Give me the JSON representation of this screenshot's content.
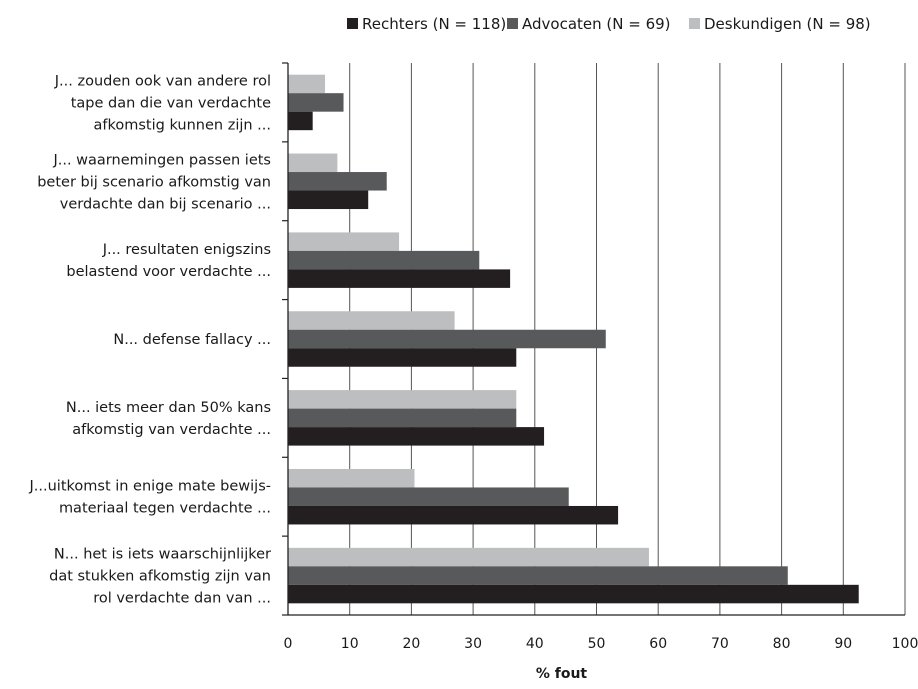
{
  "chart_data": {
    "type": "bar",
    "orientation": "horizontal",
    "xlabel": "% fout",
    "xlim": [
      0,
      100
    ],
    "xticks": [
      "0",
      "10",
      "20",
      "30",
      "40",
      "50",
      "60",
      "70",
      "80",
      "90",
      "100"
    ],
    "grid": true,
    "legend_position": "top-right",
    "categories": [
      [
        "J... zouden ook van andere rol",
        "tape dan die van verdachte",
        "afkomstig kunnen zijn ..."
      ],
      [
        "J... waarnemingen passen iets",
        "beter bij scenario afkomstig van",
        "verdachte dan bij scenario ..."
      ],
      [
        "J... resultaten enigszins",
        "belastend voor verdachte ..."
      ],
      [
        "N... defense fallacy ..."
      ],
      [
        "N... iets meer dan 50% kans",
        "afkomstig van verdachte ..."
      ],
      [
        "J...uitkomst in enige mate bewijs-",
        "materiaal tegen verdachte ..."
      ],
      [
        "N... het is iets waarschijnlijker",
        "dat stukken afkomstig zijn van",
        "rol verdachte dan van ..."
      ]
    ],
    "series": [
      {
        "name": "Rechters (N = 118)",
        "color": "#231f20",
        "values": [
          4,
          13,
          36,
          37,
          41.5,
          53.5,
          92.5
        ]
      },
      {
        "name": "Advocaten (N = 69)",
        "color": "#58595b",
        "values": [
          9,
          16,
          31,
          51.5,
          37,
          45.5,
          81
        ]
      },
      {
        "name": "Deskundigen (N = 98)",
        "color": "#bcbec0",
        "values": [
          6,
          8,
          18,
          27,
          37,
          20.5,
          58.5
        ]
      }
    ]
  }
}
